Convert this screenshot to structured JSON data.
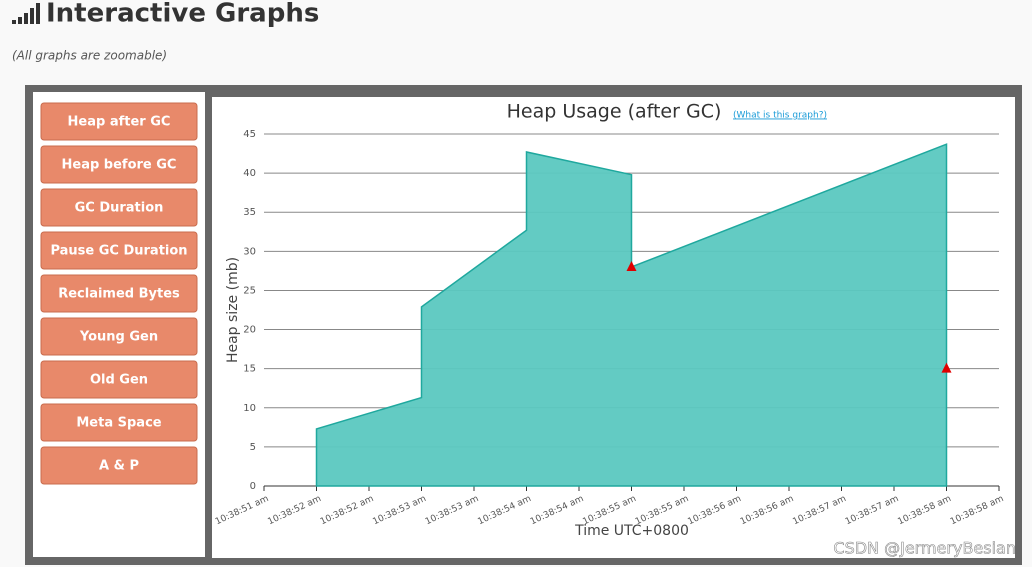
{
  "header": {
    "title": "Interactive Graphs",
    "subtitle": "(All graphs are zoomable)"
  },
  "sidebar": {
    "buttons": [
      "Heap after GC",
      "Heap before GC",
      "GC Duration",
      "Pause GC Duration",
      "Reclaimed Bytes",
      "Young Gen",
      "Old Gen",
      "Meta Space",
      "A & P"
    ]
  },
  "chart_data": {
    "type": "area",
    "title": "Heap Usage (after GC)",
    "link": "(What is this graph?)",
    "x_label": "Time UTC+0800",
    "y_label": "Heap size (mb)",
    "x": [
      52,
      52,
      53,
      53,
      54,
      54,
      55,
      55,
      58
    ],
    "series": [
      {
        "color": "#5bc8c0",
        "values": [
          3.9,
          7.3,
          11.3,
          22.9,
          32.7,
          42.7,
          39.8,
          28.0,
          43.7
        ]
      }
    ],
    "markers": {
      "color": "#e00000",
      "x": [
        55,
        58
      ],
      "values": [
        28.0,
        15.0
      ]
    },
    "xlim": [
      51.5,
      58.5
    ],
    "ylim": [
      0,
      45
    ],
    "yticks": [
      0,
      5,
      10,
      15,
      20,
      25,
      30,
      35,
      40,
      45
    ],
    "xticks": [
      {
        "value": 51.5,
        "label": "10:38:51 am"
      },
      {
        "value": 52,
        "label": "10:38:52 am"
      },
      {
        "value": 52.5,
        "label": "10:38:52 am"
      },
      {
        "value": 53,
        "label": "10:38:53 am"
      },
      {
        "value": 53.5,
        "label": "10:38:53 am"
      },
      {
        "value": 54,
        "label": "10:38:54 am"
      },
      {
        "value": 54.5,
        "label": "10:38:54 am"
      },
      {
        "value": 55,
        "label": "10:38:55 am"
      },
      {
        "value": 55.5,
        "label": "10:38:55 am"
      },
      {
        "value": 56,
        "label": "10:38:56 am"
      },
      {
        "value": 56.5,
        "label": "10:38:56 am"
      },
      {
        "value": 57,
        "label": "10:38:57 am"
      },
      {
        "value": 57.5,
        "label": "10:38:57 am"
      },
      {
        "value": 58,
        "label": "10:38:58 am"
      },
      {
        "value": 58.5,
        "label": "10:38:58 am"
      }
    ],
    "grid": true
  },
  "watermark": "CSDN @JermeryBesian"
}
